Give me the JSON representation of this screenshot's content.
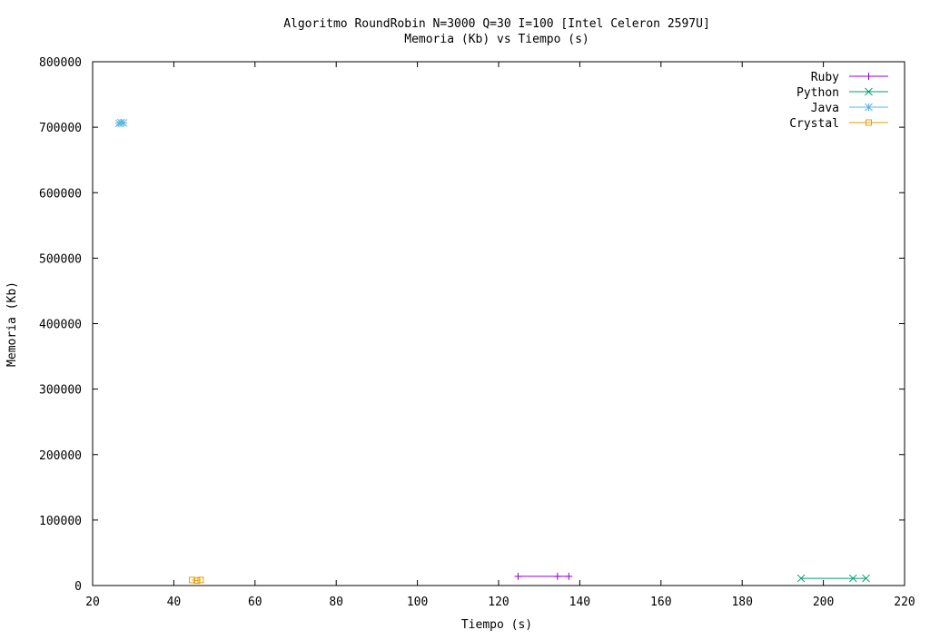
{
  "chart_data": {
    "type": "line",
    "title": "Algoritmo RoundRobin N=3000 Q=30 I=100 [Intel Celeron 2597U]",
    "subtitle": "Memoria (Kb) vs Tiempo (s)",
    "xlabel": "Tiempo (s)",
    "ylabel": "Memoria (Kb)",
    "xlim": [
      20,
      220
    ],
    "ylim": [
      0,
      800000
    ],
    "x_ticks": [
      20,
      40,
      60,
      80,
      100,
      120,
      140,
      160,
      180,
      200,
      220
    ],
    "y_ticks": [
      0,
      100000,
      200000,
      300000,
      400000,
      500000,
      600000,
      700000,
      800000
    ],
    "grid": false,
    "legend_position": "top-right",
    "series": [
      {
        "name": "Ruby",
        "color": "#9400d3",
        "marker": "plus",
        "points": [
          [
            124.8,
            14000
          ],
          [
            134.5,
            14000
          ],
          [
            137.3,
            14000
          ]
        ]
      },
      {
        "name": "Python",
        "color": "#009e73",
        "marker": "cross",
        "points": [
          [
            194.5,
            11000
          ],
          [
            207.3,
            11000
          ],
          [
            210.5,
            11000
          ]
        ]
      },
      {
        "name": "Java",
        "color": "#56b4e9",
        "marker": "star",
        "points": [
          [
            26.5,
            706000
          ],
          [
            27.0,
            707000
          ],
          [
            27.6,
            706500
          ]
        ]
      },
      {
        "name": "Crystal",
        "color": "#e69f00",
        "marker": "square",
        "points": [
          [
            44.5,
            8500
          ],
          [
            45.7,
            7500
          ],
          [
            46.6,
            8500
          ]
        ]
      }
    ]
  }
}
